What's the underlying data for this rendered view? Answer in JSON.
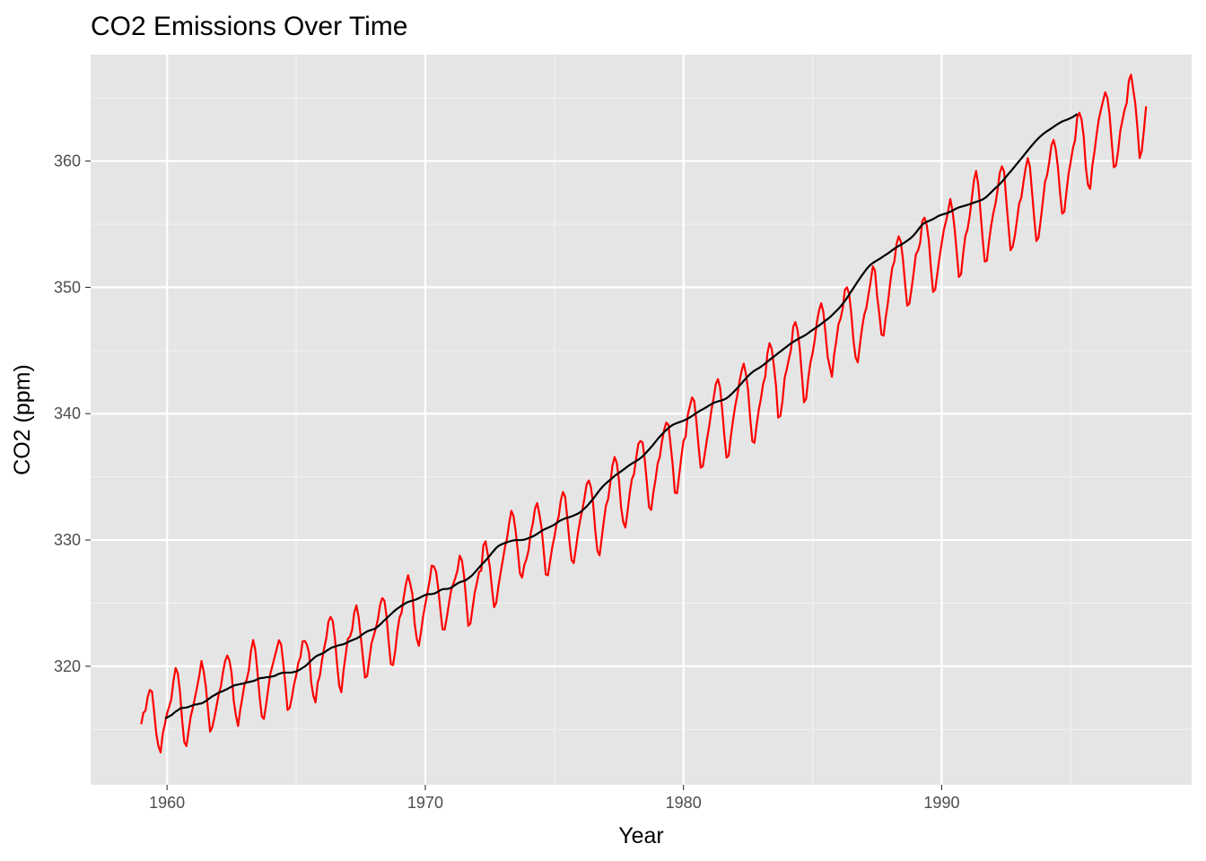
{
  "chart_data": {
    "type": "line",
    "title": "CO2 Emissions Over Time",
    "xlabel": "Year",
    "ylabel": "CO2 (ppm)",
    "xlim": [
      1957.04,
      1999.68
    ],
    "ylim": [
      310.62,
      368.42
    ],
    "x_ticks": [
      1960,
      1970,
      1980,
      1990
    ],
    "y_ticks": [
      320,
      330,
      340,
      350,
      360
    ],
    "grid": true,
    "background": "#e5e5e5",
    "series": [
      {
        "color": "#ff0000",
        "x_start": 1959.0,
        "x_step": 0.083333,
        "values": [
          315.42,
          316.31,
          316.5,
          317.56,
          318.13,
          318.0,
          316.39,
          314.65,
          313.68,
          313.18,
          314.66,
          315.43,
          316.27,
          316.81,
          317.42,
          318.87,
          319.87,
          319.43,
          318.01,
          315.74,
          314.0,
          313.68,
          314.84,
          316.03,
          316.73,
          317.54,
          318.38,
          319.31,
          320.42,
          319.61,
          318.42,
          316.63,
          314.83,
          315.16,
          315.94,
          316.85,
          317.78,
          318.4,
          319.53,
          320.42,
          320.85,
          320.45,
          319.45,
          317.25,
          316.11,
          315.27,
          316.53,
          317.53,
          318.58,
          318.92,
          319.7,
          321.22,
          322.08,
          321.31,
          319.58,
          317.61,
          316.05,
          315.83,
          316.91,
          318.2,
          319.41,
          320.07,
          320.74,
          321.4,
          322.06,
          321.73,
          320.27,
          318.54,
          316.54,
          316.71,
          317.53,
          318.55,
          319.27,
          320.28,
          320.73,
          321.97,
          322.0,
          321.71,
          321.05,
          318.71,
          317.66,
          317.14,
          318.7,
          319.25,
          320.46,
          321.43,
          322.23,
          323.54,
          323.91,
          323.59,
          322.24,
          320.2,
          318.48,
          317.94,
          319.63,
          320.87,
          322.17,
          322.34,
          322.88,
          324.25,
          324.83,
          323.93,
          322.38,
          320.76,
          319.1,
          319.24,
          320.56,
          321.8,
          322.4,
          322.99,
          323.73,
          324.86,
          325.4,
          325.2,
          323.98,
          321.95,
          320.18,
          320.09,
          321.16,
          322.74,
          323.83,
          324.26,
          325.47,
          326.5,
          327.21,
          326.54,
          325.72,
          323.5,
          322.22,
          321.62,
          322.69,
          323.95,
          324.89,
          325.82,
          326.77,
          327.97,
          327.91,
          327.5,
          326.18,
          324.53,
          322.93,
          322.9,
          323.85,
          324.96,
          326.01,
          326.51,
          327.01,
          327.62,
          328.76,
          328.4,
          327.2,
          325.27,
          323.2,
          323.4,
          324.63,
          325.85,
          326.6,
          327.47,
          327.58,
          329.56,
          329.9,
          328.92,
          327.88,
          326.16,
          324.68,
          325.04,
          326.34,
          327.39,
          328.37,
          329.4,
          330.14,
          331.33,
          332.31,
          331.9,
          330.7,
          329.15,
          327.35,
          327.02,
          327.99,
          328.48,
          329.18,
          330.55,
          331.32,
          332.48,
          332.92,
          332.08,
          331.01,
          329.23,
          327.27,
          327.21,
          328.29,
          329.41,
          330.23,
          331.25,
          331.87,
          333.14,
          333.8,
          333.43,
          331.73,
          329.9,
          328.4,
          328.17,
          329.32,
          330.59,
          331.58,
          332.39,
          333.33,
          334.41,
          334.71,
          334.17,
          332.89,
          330.77,
          329.14,
          328.78,
          330.14,
          331.52,
          332.75,
          333.24,
          334.53,
          335.9,
          336.57,
          336.1,
          334.76,
          332.59,
          331.42,
          330.98,
          332.24,
          333.68,
          334.8,
          335.22,
          336.47,
          337.59,
          337.84,
          337.72,
          336.37,
          334.51,
          332.6,
          332.38,
          333.75,
          334.78,
          336.05,
          336.59,
          337.79,
          338.71,
          339.3,
          339.12,
          337.56,
          335.92,
          333.75,
          333.7,
          335.12,
          336.56,
          337.84,
          338.19,
          339.91,
          340.6,
          341.29,
          341.0,
          339.39,
          337.43,
          335.72,
          335.84,
          336.93,
          338.04,
          339.06,
          340.3,
          341.21,
          342.33,
          342.74,
          342.08,
          340.32,
          338.26,
          336.52,
          336.68,
          338.19,
          339.44,
          340.57,
          341.44,
          342.53,
          343.39,
          343.96,
          343.18,
          341.88,
          339.65,
          337.81,
          337.69,
          339.09,
          340.32,
          341.2,
          342.35,
          342.93,
          344.77,
          345.58,
          345.14,
          343.81,
          342.21,
          339.69,
          339.82,
          340.98,
          342.82,
          343.52,
          344.33,
          345.11,
          346.88,
          347.25,
          346.62,
          345.22,
          343.11,
          340.9,
          341.18,
          342.8,
          344.04,
          344.79,
          345.82,
          347.25,
          348.17,
          348.74,
          348.07,
          346.38,
          344.51,
          343.7,
          342.92,
          344.65,
          345.76,
          347.06,
          347.53,
          348.33,
          349.81,
          350.0,
          349.46,
          347.88,
          345.8,
          344.44,
          344.06,
          345.46,
          346.79,
          347.82,
          348.38,
          349.46,
          350.48,
          351.67,
          351.31,
          349.33,
          347.92,
          346.27,
          346.18,
          347.64,
          348.78,
          350.25,
          351.54,
          352.05,
          353.41,
          354.04,
          353.62,
          352.22,
          350.27,
          348.55,
          348.72,
          349.91,
          351.18,
          352.6,
          352.92,
          353.53,
          355.26,
          355.52,
          354.97,
          353.75,
          351.52,
          349.64,
          349.83,
          351.14,
          352.37,
          353.5,
          354.55,
          355.23,
          356.04,
          357.0,
          356.07,
          354.67,
          352.76,
          350.82,
          351.04,
          352.69,
          354.07,
          354.59,
          355.63,
          357.03,
          358.48,
          359.22,
          358.12,
          356.06,
          353.92,
          352.05,
          352.11,
          353.64,
          354.89,
          355.88,
          356.63,
          357.72,
          359.07,
          359.58,
          359.17,
          356.94,
          354.92,
          352.94,
          353.23,
          354.09,
          355.33,
          356.63,
          357.1,
          358.32,
          359.41,
          360.23,
          359.55,
          357.53,
          355.48,
          353.67,
          353.95,
          355.3,
          356.78,
          358.34,
          358.89,
          359.95,
          361.25,
          361.67,
          360.94,
          359.55,
          357.49,
          355.84,
          356.0,
          357.59,
          359.05,
          359.98,
          361.03,
          361.66,
          363.48,
          363.82,
          363.3,
          361.94,
          359.5,
          358.11,
          357.8,
          359.61,
          360.74,
          362.09,
          363.29,
          364.06,
          364.76,
          365.45,
          365.01,
          363.7,
          361.54,
          359.51,
          359.65,
          360.8,
          362.38,
          363.23,
          364.06,
          364.61,
          366.4,
          366.84,
          365.68,
          364.52,
          362.57,
          360.24,
          360.83,
          362.49,
          364.34
        ]
      },
      {
        "color": "#000000",
        "x_start": 1959.917,
        "x_step": 0.083333,
        "values": [
          315.9,
          315.94,
          316.05,
          316.12,
          316.28,
          316.42,
          316.52,
          316.65,
          316.7,
          316.72,
          316.73,
          316.79,
          316.85,
          316.91,
          316.98,
          316.99,
          317.04,
          317.06,
          317.14,
          317.25,
          317.37,
          317.5,
          317.62,
          317.71,
          317.81,
          317.92,
          317.97,
          318.04,
          318.13,
          318.2,
          318.3,
          318.39,
          318.47,
          318.53,
          318.55,
          318.6,
          318.62,
          318.66,
          318.72,
          318.75,
          318.79,
          318.83,
          318.89,
          318.97,
          319.05,
          319.08,
          319.09,
          319.13,
          319.14,
          319.17,
          319.2,
          319.24,
          319.33,
          319.4,
          319.46,
          319.49,
          319.49,
          319.5,
          319.5,
          319.51,
          319.55,
          319.59,
          319.67,
          319.77,
          319.88,
          319.98,
          320.12,
          320.29,
          320.46,
          320.62,
          320.76,
          320.86,
          320.93,
          321.0,
          321.09,
          321.21,
          321.32,
          321.43,
          321.51,
          321.56,
          321.62,
          321.67,
          321.71,
          321.75,
          321.82,
          321.91,
          321.99,
          322.06,
          322.13,
          322.2,
          322.29,
          322.41,
          322.55,
          322.66,
          322.76,
          322.83,
          322.88,
          322.94,
          323.02,
          323.15,
          323.31,
          323.47,
          323.64,
          323.8,
          323.96,
          324.12,
          324.28,
          324.43,
          324.56,
          324.68,
          324.8,
          324.9,
          325.01,
          325.09,
          325.15,
          325.2,
          325.25,
          325.31,
          325.39,
          325.48,
          325.57,
          325.65,
          325.71,
          325.71,
          325.72,
          325.75,
          325.82,
          325.92,
          326.03,
          326.1,
          326.12,
          326.12,
          326.15,
          326.22,
          326.33,
          326.45,
          326.56,
          326.65,
          326.71,
          326.76,
          326.84,
          326.96,
          327.09,
          327.24,
          327.43,
          327.63,
          327.82,
          328.01,
          328.19,
          328.37,
          328.56,
          328.77,
          328.98,
          329.18,
          329.38,
          329.52,
          329.62,
          329.69,
          329.76,
          329.82,
          329.88,
          329.93,
          329.97,
          329.99,
          329.99,
          329.99,
          330.0,
          330.03,
          330.08,
          330.15,
          330.22,
          330.29,
          330.38,
          330.48,
          330.6,
          330.71,
          330.81,
          330.89,
          330.96,
          331.04,
          331.12,
          331.22,
          331.34,
          331.46,
          331.56,
          331.64,
          331.71,
          331.76,
          331.81,
          331.87,
          331.94,
          332.01,
          332.09,
          332.2,
          332.33,
          332.49,
          332.66,
          332.85,
          333.05,
          333.26,
          333.48,
          333.71,
          333.94,
          334.14,
          334.33,
          334.48,
          334.63,
          334.77,
          334.92,
          335.07,
          335.2,
          335.32,
          335.43,
          335.56,
          335.69,
          335.82,
          335.94,
          336.05,
          336.15,
          336.25,
          336.36,
          336.48,
          336.62,
          336.79,
          336.98,
          337.17,
          337.36,
          337.56,
          337.78,
          337.99,
          338.19,
          338.37,
          338.55,
          338.71,
          338.86,
          339.0,
          339.11,
          339.19,
          339.26,
          339.32,
          339.38,
          339.45,
          339.53,
          339.61,
          339.71,
          339.82,
          339.94,
          340.06,
          340.16,
          340.26,
          340.35,
          340.45,
          340.55,
          340.66,
          340.76,
          340.85,
          340.92,
          340.97,
          341.02,
          341.07,
          341.13,
          341.22,
          341.35,
          341.5,
          341.67,
          341.84,
          342.02,
          342.21,
          342.4,
          342.6,
          342.79,
          342.97,
          343.14,
          343.28,
          343.41,
          343.51,
          343.61,
          343.72,
          343.84,
          343.98,
          344.12,
          344.26,
          344.39,
          344.52,
          344.65,
          344.79,
          344.92,
          345.05,
          345.18,
          345.31,
          345.45,
          345.57,
          345.68,
          345.79,
          345.89,
          345.98,
          346.07,
          346.16,
          346.26,
          346.38,
          346.51,
          346.63,
          346.75,
          346.86,
          346.98,
          347.1,
          347.24,
          347.37,
          347.49,
          347.63,
          347.79,
          347.96,
          348.13,
          348.3,
          348.49,
          348.7,
          348.92,
          349.17,
          349.43,
          349.69,
          349.95,
          350.21,
          350.47,
          350.72,
          350.97,
          351.2,
          351.43,
          351.63,
          351.8,
          351.93,
          352.04,
          352.14,
          352.24,
          352.35,
          352.47,
          352.58,
          352.69,
          352.81,
          352.94,
          353.06,
          353.18,
          353.28,
          353.37,
          353.47,
          353.58,
          353.7,
          353.82,
          353.96,
          354.13,
          354.33,
          354.55,
          354.78,
          354.97,
          355.1,
          355.19,
          355.26,
          355.33,
          355.41,
          355.5,
          355.61,
          355.69,
          355.75,
          355.8,
          355.85,
          355.91,
          355.99,
          356.08,
          356.17,
          356.26,
          356.33,
          356.38,
          356.43,
          356.48,
          356.53,
          356.59,
          356.65,
          356.71,
          356.77,
          356.82,
          356.88,
          356.96,
          357.06,
          357.2,
          357.36,
          357.53,
          357.7,
          357.86,
          358.01,
          358.18,
          358.36,
          358.56,
          358.77,
          358.98,
          359.17,
          359.37,
          359.58,
          359.79,
          360.0,
          360.2,
          360.41,
          360.63,
          360.84,
          361.05,
          361.25,
          361.45,
          361.64,
          361.81,
          361.97,
          362.12,
          362.25,
          362.37,
          362.48,
          362.59,
          362.71,
          362.83,
          362.94,
          363.04,
          363.13,
          363.2,
          363.26,
          363.33,
          363.41,
          363.5,
          363.61,
          363.73
        ]
      }
    ]
  }
}
